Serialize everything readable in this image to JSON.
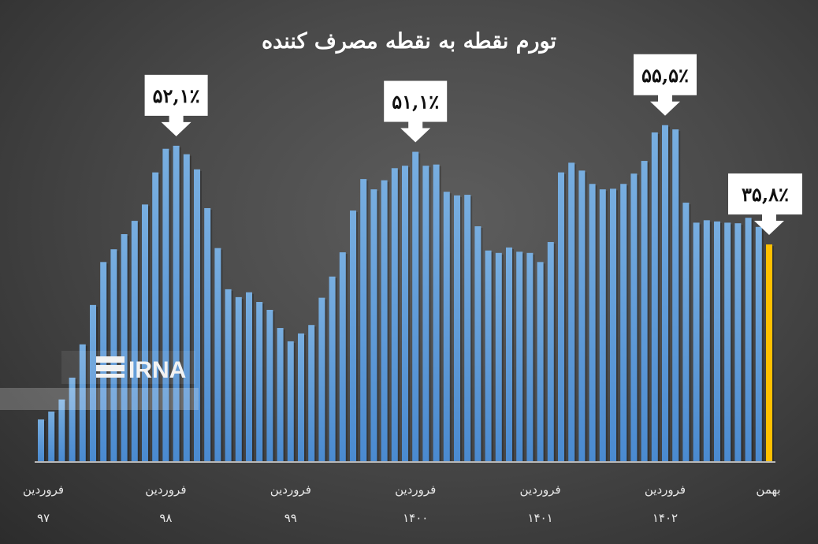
{
  "chart_data": {
    "type": "bar",
    "title": "تورم نقطه به نقطه مصرف کننده",
    "xlabel": "",
    "ylabel": "",
    "unit": "%",
    "ylim": [
      0,
      76
    ],
    "grid": false,
    "legend": "none",
    "x_tick_labels": [
      {
        "index": 0,
        "month": "فروردین",
        "year": "۹۷"
      },
      {
        "index": 12,
        "month": "فروردین",
        "year": "۹۸"
      },
      {
        "index": 24,
        "month": "فروردین",
        "year": "۹۹"
      },
      {
        "index": 36,
        "month": "فروردین",
        "year": "۱۴۰۰"
      },
      {
        "index": 48,
        "month": "فروردین",
        "year": "۱۴۰۱"
      },
      {
        "index": 60,
        "month": "فروردین",
        "year": "۱۴۰۲"
      },
      {
        "index": 70,
        "month": "بهمن",
        "year": ""
      }
    ],
    "values": [
      6.9,
      8.2,
      10.2,
      13.8,
      19.3,
      25.8,
      32.9,
      35.0,
      37.5,
      39.7,
      42.4,
      47.7,
      51.6,
      52.1,
      50.7,
      48.2,
      41.8,
      35.2,
      28.4,
      27.1,
      27.9,
      26.3,
      25.0,
      22.0,
      19.8,
      21.1,
      22.5,
      27.0,
      30.5,
      34.5,
      41.4,
      46.6,
      44.9,
      46.4,
      48.4,
      48.8,
      51.1,
      48.8,
      49.0,
      44.5,
      43.9,
      44.0,
      38.8,
      34.8,
      34.4,
      35.3,
      34.6,
      34.4,
      32.9,
      36.2,
      47.7,
      49.3,
      48.0,
      45.8,
      44.9,
      45.0,
      45.8,
      47.5,
      49.6,
      54.3,
      55.5,
      54.8,
      42.7,
      39.4,
      39.8,
      39.6,
      39.4,
      39.3,
      40.2,
      38.7,
      35.8
    ],
    "highlight_index": 70,
    "colors": {
      "bar": "#5b9bd5",
      "highlight": "#ffc000"
    },
    "annotations": [
      {
        "index": 13,
        "text": "۵۲,۱٪"
      },
      {
        "index": 36,
        "text": "۵۱,۱٪"
      },
      {
        "index": 60,
        "text": "۵۵,۵٪"
      },
      {
        "index": 70,
        "text": "۳۵,۸٪"
      }
    ]
  },
  "watermark": {
    "logo_text": "IRNA"
  }
}
